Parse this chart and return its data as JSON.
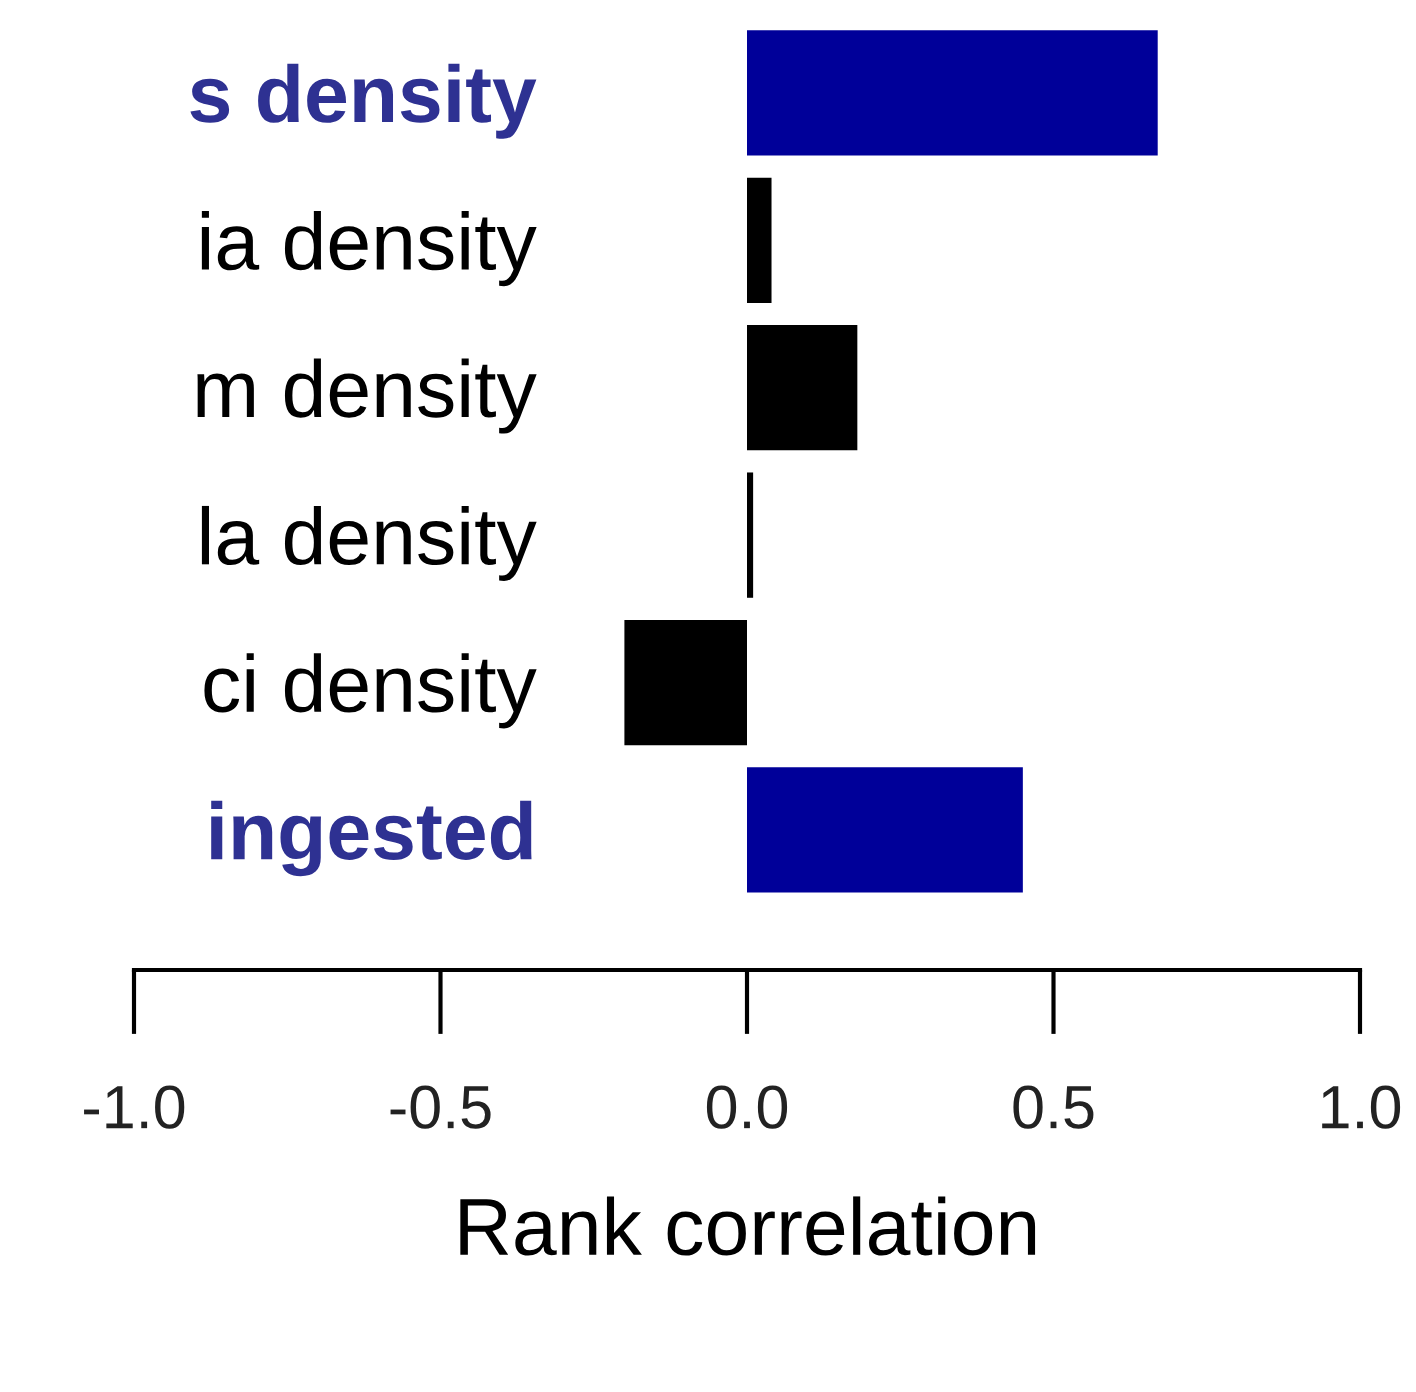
{
  "chart_data": {
    "type": "bar",
    "orientation": "horizontal",
    "xlabel": "Rank correlation",
    "categories": [
      "s density",
      "ia density",
      "m density",
      "la density",
      "ci density",
      "ingested"
    ],
    "values": [
      0.67,
      0.04,
      0.18,
      0.01,
      -0.2,
      0.45
    ],
    "colors": [
      "#000099",
      "#000000",
      "#000000",
      "#000000",
      "#000000",
      "#000099"
    ],
    "xlim": [
      -1.0,
      1.0
    ],
    "xticks": [
      {
        "value": -1.0,
        "label": "-1.0"
      },
      {
        "value": -0.5,
        "label": "-0.5"
      },
      {
        "value": 0.0,
        "label": "0.0"
      },
      {
        "value": 0.5,
        "label": "0.5"
      },
      {
        "value": 1.0,
        "label": "1.0"
      }
    ],
    "grid": false,
    "legend": false
  }
}
